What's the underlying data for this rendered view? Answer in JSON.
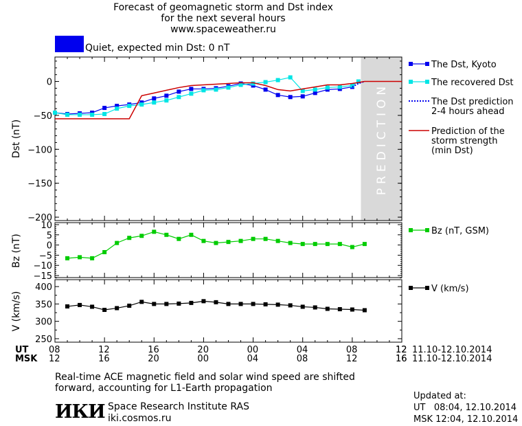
{
  "header": {
    "title_line1": "Forecast of geomagnetic storm and Dst index",
    "title_line2": "for the next several hours",
    "title_line3": "www.spaceweather.ru",
    "status_color": "#0000ee",
    "status_text": "Quiet, expected min Dst: 0 nT"
  },
  "prediction_label": "PREDICTION",
  "colors": {
    "dst": "#0000ee",
    "recovered": "#00e5e5",
    "prediction": "#cc0000",
    "bz": "#00cc00",
    "v": "#000000",
    "band": "#d9d9d9"
  },
  "chart_data": [
    {
      "type": "line",
      "ylabel": "Dst (nT)",
      "ylim": [
        -205,
        36
      ],
      "yticks": [
        0,
        -50,
        -100,
        -150,
        -200
      ],
      "xlim": [
        8,
        36
      ],
      "prediction_band_x": [
        32.7,
        36
      ],
      "legend": [
        {
          "name": "The Dst, Kyoto",
          "style": "dst"
        },
        {
          "name": "The recovered Dst",
          "style": "recovered"
        },
        {
          "name": "The Dst prediction",
          "name2": "2-4 hours ahead",
          "style": "dotted"
        },
        {
          "name": "Prediction of the",
          "name2": "storm strength",
          "name3": "(min Dst)",
          "style": "prediction"
        }
      ],
      "series": [
        {
          "name": "The Dst, Kyoto",
          "x": [
            8,
            9,
            10,
            11,
            12,
            13,
            14,
            15,
            16,
            17,
            18,
            19,
            20,
            21,
            22,
            23,
            24,
            25,
            26,
            27,
            28,
            29,
            30,
            31,
            32
          ],
          "y": [
            -46,
            -48,
            -47,
            -46,
            -39,
            -36,
            -34,
            -31,
            -25,
            -21,
            -15,
            -11,
            -11,
            -10,
            -7,
            -3,
            -6,
            -12,
            -20,
            -23,
            -22,
            -17,
            -12,
            -11,
            -8
          ]
        },
        {
          "name": "The recovered Dst",
          "x": [
            8,
            9,
            10,
            11,
            12,
            13,
            14,
            15,
            16,
            17,
            18,
            19,
            20,
            21,
            22,
            23,
            24,
            25,
            26,
            27,
            28,
            29,
            30,
            31,
            32,
            32.5
          ],
          "y": [
            -46,
            -49,
            -49,
            -49,
            -48,
            -40,
            -36,
            -34,
            -31,
            -28,
            -23,
            -18,
            -13,
            -12,
            -9,
            -5,
            -3,
            -1,
            2,
            6,
            -14,
            -12,
            -9,
            -8,
            -6,
            0
          ]
        },
        {
          "name": "The Dst prediction",
          "x": [
            32,
            32.5,
            33
          ],
          "y": [
            -8,
            -3,
            0
          ]
        },
        {
          "name": "Prediction of the storm strength",
          "x": [
            8,
            14,
            15,
            16,
            17,
            18,
            19,
            20,
            21,
            22,
            23,
            24,
            25,
            26,
            27,
            28,
            29,
            30,
            31,
            32,
            33,
            36
          ],
          "y": [
            -55,
            -55,
            -21,
            -17,
            -13,
            -9,
            -6,
            -5,
            -4,
            -3,
            -2,
            -2,
            -6,
            -12,
            -14,
            -11,
            -8,
            -5,
            -5,
            -3,
            0,
            0
          ]
        }
      ]
    },
    {
      "type": "line",
      "ylabel": "Bz (nT)",
      "ylim": [
        -16,
        11
      ],
      "yticks": [
        10,
        5,
        0,
        -5,
        -10,
        -15
      ],
      "xlim": [
        8,
        36
      ],
      "legend": [
        {
          "name": "Bz (nT, GSM)",
          "style": "bz"
        }
      ],
      "series": [
        {
          "name": "Bz (nT, GSM)",
          "x": [
            9,
            10,
            11,
            12,
            13,
            14,
            15,
            16,
            17,
            18,
            19,
            20,
            21,
            22,
            23,
            24,
            25,
            26,
            27,
            28,
            29,
            30,
            31,
            32,
            33
          ],
          "y": [
            -6.5,
            -6,
            -6.5,
            -3.5,
            1,
            3.5,
            4.5,
            6.5,
            5,
            3,
            5,
            2,
            1,
            1.5,
            2,
            3,
            3,
            2,
            1,
            0.5,
            0.5,
            0.5,
            0.5,
            -1,
            0.5
          ]
        }
      ]
    },
    {
      "type": "line",
      "ylabel": "V (km/s)",
      "ylim": [
        240,
        420
      ],
      "yticks": [
        400,
        350,
        300,
        250
      ],
      "yticks_minor": [
        425,
        375,
        325,
        275
      ],
      "xlim": [
        8,
        36
      ],
      "legend": [
        {
          "name": "V (km/s)",
          "style": "v"
        }
      ],
      "series": [
        {
          "name": "V (km/s)",
          "x": [
            9,
            10,
            11,
            12,
            13,
            14,
            15,
            16,
            17,
            18,
            19,
            20,
            21,
            22,
            23,
            24,
            25,
            26,
            27,
            28,
            29,
            30,
            31,
            32,
            33
          ],
          "y": [
            343,
            347,
            342,
            333,
            338,
            345,
            356,
            350,
            350,
            351,
            353,
            358,
            355,
            350,
            350,
            350,
            349,
            348,
            346,
            342,
            340,
            336,
            335,
            334,
            332
          ]
        }
      ]
    }
  ],
  "xaxis": {
    "ut_label": "UT",
    "msk_label": "MSK",
    "ut_ticks": [
      "08",
      "12",
      "16",
      "20",
      "00",
      "04",
      "08",
      "12"
    ],
    "msk_ticks": [
      "12",
      "16",
      "20",
      "00",
      "04",
      "08",
      "12",
      "16"
    ],
    "range_ut": "11.10-12.10.2014",
    "range_msk": "11.10-12.10.2014"
  },
  "footer": {
    "note_line1": "Real-time ACE magnetic field and solar wind speed are shifted",
    "note_line2": "forward, accounting for L1-Earth propagation",
    "logo": "ИКИ",
    "institute": "Space Research Institute RAS",
    "site": "iki.cosmos.ru",
    "updated_label": "Updated at:",
    "updated_ut": "UT   08:04, 12.10.2014",
    "updated_msk": "MSK 12:04, 12.10.2014"
  }
}
